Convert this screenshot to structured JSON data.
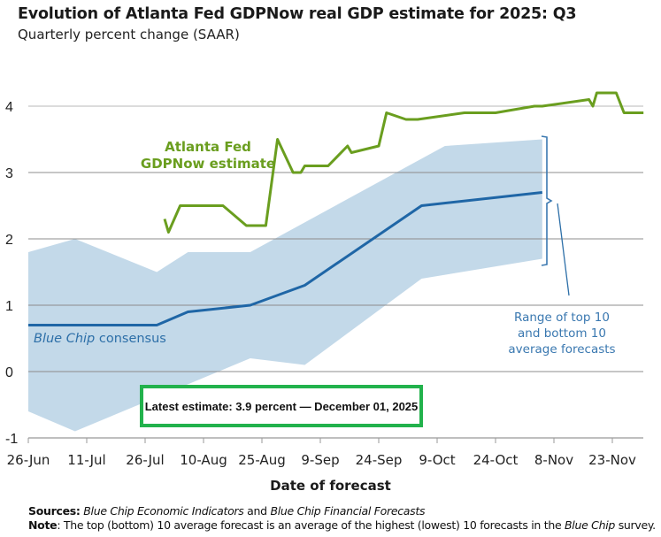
{
  "header": {
    "title": "Evolution of Atlanta Fed GDPNow real GDP estimate for 2025: Q3",
    "subtitle": "Quarterly percent change (SAAR)"
  },
  "annotations": {
    "gdpnow_label": "Atlanta Fed GDPNow estimate",
    "bluechip_label_italic": "Blue Chip",
    "bluechip_label_rest": " consensus",
    "range_label": "Range of top 10 and bottom 10 average forecasts",
    "latest_estimate": "Latest estimate: 3.9 percent — December 01, 2025"
  },
  "footer": {
    "sources_label": "Sources:",
    "sources_part1": "Blue Chip Economic Indicators",
    "sources_and": " and ",
    "sources_part2": "Blue Chip Financial Forecasts",
    "note_label": "Note",
    "note_text_1": ": The top (bottom) 10 average forecast is an average of the highest (lowest) 10 forecasts in the ",
    "note_italic": "Blue Chip",
    "note_text_2": " survey."
  },
  "colors": {
    "gdpnow": "#6a9e1f",
    "bluechip": "#1f66a6",
    "band": "#c3d9e9",
    "grid": "#8c8c8c",
    "latest_box_border": "#22b24c"
  },
  "chart_data": {
    "type": "line",
    "title": "Evolution of Atlanta Fed GDPNow real GDP estimate for 2025: Q3",
    "subtitle": "Quarterly percent change (SAAR)",
    "xlabel": "Date of forecast",
    "ylabel": "",
    "ylim": [
      -1,
      4.4
    ],
    "yticks": [
      -1,
      0,
      1,
      2,
      3,
      4
    ],
    "ytick_labels": [
      "-1",
      "0",
      "1",
      "2",
      "3",
      "4"
    ],
    "x_unit": "days since 26-Jun",
    "xlim": [
      0,
      158
    ],
    "xticks": [
      0,
      15,
      30,
      45,
      60,
      75,
      90,
      105,
      120,
      135,
      150
    ],
    "xtick_labels": [
      "26-Jun",
      "11-Jul",
      "26-Jul",
      "10-Aug",
      "25-Aug",
      "9-Sep",
      "24-Sep",
      "9-Oct",
      "24-Oct",
      "8-Nov",
      "23-Nov"
    ],
    "grid": "horizontal",
    "series": [
      {
        "name": "Atlanta Fed GDPNow estimate",
        "x": [
          35,
          36,
          39,
          50,
          56,
          61,
          64,
          68,
          70,
          71,
          77,
          82,
          83,
          90,
          92,
          97,
          100,
          112,
          120,
          130,
          132,
          144,
          145,
          146,
          151,
          153,
          158
        ],
        "values": [
          2.3,
          2.1,
          2.5,
          2.5,
          2.2,
          2.2,
          3.5,
          3.0,
          3.0,
          3.1,
          3.1,
          3.4,
          3.3,
          3.4,
          3.9,
          3.8,
          3.8,
          3.9,
          3.9,
          4.0,
          4.0,
          4.1,
          4.0,
          4.2,
          4.2,
          3.9,
          3.9
        ]
      },
      {
        "name": "Blue Chip consensus",
        "x": [
          0,
          33,
          41,
          57,
          71,
          101,
          132
        ],
        "values": [
          0.7,
          0.7,
          0.9,
          1.0,
          1.3,
          2.5,
          2.7
        ]
      },
      {
        "name": "Top 10 average",
        "x": [
          0,
          12,
          33,
          41,
          57,
          107,
          132
        ],
        "values": [
          1.8,
          2.0,
          1.5,
          1.8,
          1.8,
          3.4,
          3.5
        ]
      },
      {
        "name": "Bottom 10 average",
        "x": [
          0,
          12,
          57,
          71,
          101,
          132
        ],
        "values": [
          -0.6,
          -0.9,
          0.2,
          0.1,
          1.4,
          1.7
        ]
      }
    ],
    "legend": "inline labels"
  }
}
